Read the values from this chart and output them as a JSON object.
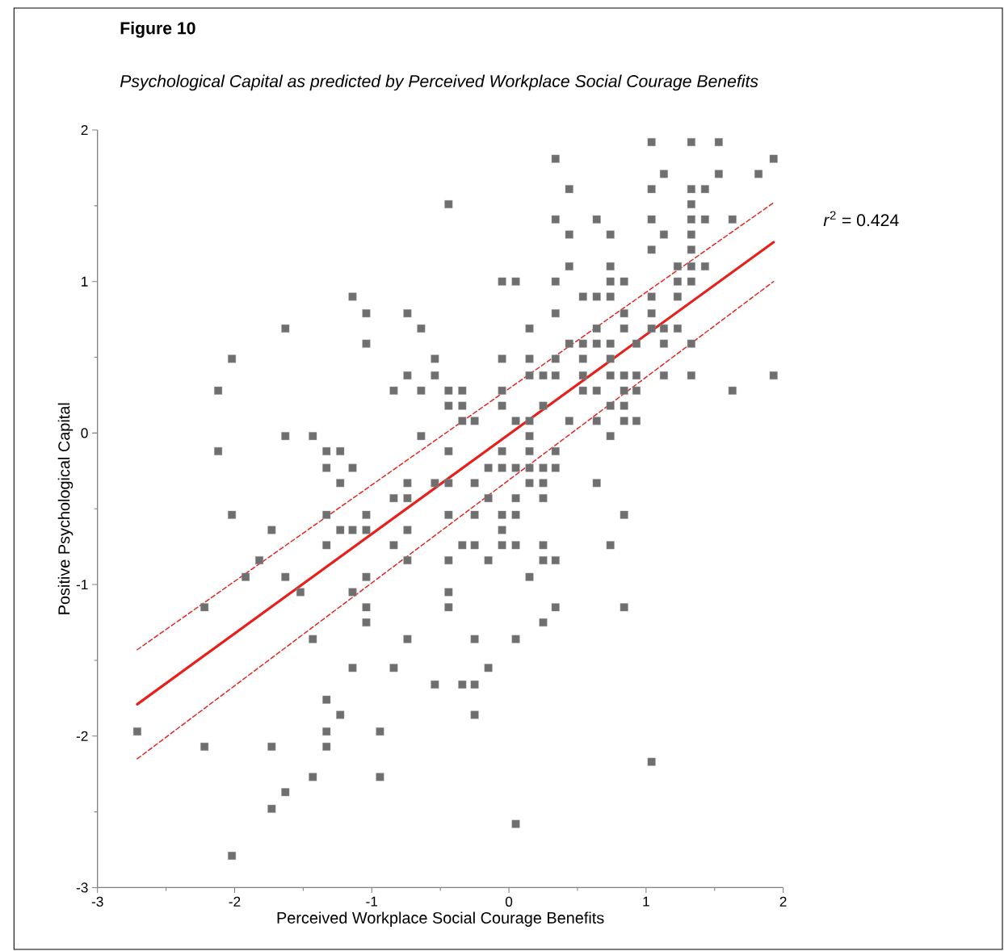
{
  "chart_data": {
    "type": "scatter",
    "title": "Figure 10",
    "subtitle": "Psychological Capital as predicted by Perceived Workplace Social Courage Benefits",
    "xlabel": "Perceived  Workplace Social Courage Benefits",
    "ylabel": "Positive Psychological Capital",
    "xlim": [
      -3,
      2
    ],
    "xticks": [
      -3,
      -2,
      -1,
      0,
      1,
      2
    ],
    "ylim": [
      -3,
      2
    ],
    "yticks": [
      -3,
      -2,
      -1,
      0,
      1,
      2
    ],
    "grid": false,
    "annotations": [
      "*r*$^{2}$ = 0.424"
    ],
    "series": [
      {
        "marker": "square",
        "color": "#6f6f6f",
        "x": [
          1.04,
          1.33,
          1.53,
          0.34,
          1.93,
          1.13,
          1.53,
          1.82,
          0.44,
          1.04,
          1.33,
          1.43,
          -0.44,
          1.33,
          0.34,
          0.64,
          1.04,
          1.33,
          1.43,
          1.63,
          0.44,
          0.74,
          1.13,
          1.33,
          1.04,
          1.33,
          0.44,
          0.74,
          1.23,
          1.33,
          1.43,
          -0.05,
          0.05,
          0.34,
          0.74,
          0.84,
          1.23,
          1.33,
          -1.14,
          0.54,
          0.64,
          0.74,
          1.04,
          1.23,
          -1.04,
          -0.74,
          0.34,
          0.84,
          1.04,
          -1.63,
          -0.64,
          0.15,
          0.64,
          0.84,
          1.04,
          1.13,
          1.23,
          -1.04,
          0.44,
          0.54,
          0.64,
          0.74,
          0.93,
          1.13,
          1.33,
          -2.02,
          -0.54,
          -0.05,
          0.15,
          0.34,
          0.54,
          0.74,
          -0.74,
          -0.54,
          0.15,
          0.25,
          0.34,
          0.54,
          0.74,
          0.84,
          0.93,
          1.13,
          1.33,
          1.93,
          -2.12,
          -0.84,
          -0.64,
          -0.44,
          -0.34,
          -0.05,
          0.54,
          0.64,
          0.84,
          0.93,
          1.63,
          -0.44,
          -0.34,
          -0.05,
          0.25,
          0.74,
          0.84,
          -0.34,
          -0.25,
          0.05,
          0.15,
          0.44,
          0.64,
          0.84,
          0.93,
          -1.63,
          -1.43,
          -0.64,
          0.15,
          0.74,
          -2.12,
          -1.33,
          -1.23,
          -0.44,
          -0.05,
          0.15,
          0.34,
          -1.33,
          -1.14,
          -0.15,
          -0.05,
          0.05,
          0.15,
          0.25,
          0.34,
          -1.23,
          -0.74,
          -0.54,
          -0.44,
          -0.25,
          0.15,
          0.25,
          0.64,
          -0.84,
          -0.74,
          -0.15,
          0.05,
          0.25,
          -2.02,
          -1.33,
          -1.04,
          -0.44,
          -0.25,
          -0.05,
          0.05,
          0.84,
          -1.73,
          -1.23,
          -1.14,
          -1.04,
          -0.74,
          -0.05,
          -1.33,
          -0.84,
          -0.34,
          -0.25,
          -0.05,
          0.05,
          0.25,
          0.74,
          -1.82,
          -0.74,
          -0.44,
          -0.15,
          0.25,
          0.34,
          -1.92,
          -1.63,
          -1.04,
          0.15,
          -1.52,
          -1.14,
          -0.44,
          -2.22,
          -1.04,
          -0.44,
          0.34,
          0.84,
          -1.04,
          0.25,
          -1.43,
          -0.74,
          -0.25,
          0.05,
          -1.14,
          -0.84,
          -0.15,
          -0.54,
          -0.34,
          -0.25,
          -1.33,
          -1.23,
          -0.25,
          -2.71,
          -1.33,
          -0.94,
          -2.22,
          -1.73,
          -1.33,
          1.04,
          -1.43,
          -0.94,
          -1.63,
          -1.73,
          0.05,
          -2.02
        ],
        "values": [
          1.92,
          1.92,
          1.92,
          1.81,
          1.81,
          1.71,
          1.71,
          1.71,
          1.61,
          1.61,
          1.61,
          1.61,
          1.51,
          1.51,
          1.41,
          1.41,
          1.41,
          1.41,
          1.41,
          1.41,
          1.31,
          1.31,
          1.31,
          1.31,
          1.21,
          1.21,
          1.1,
          1.1,
          1.1,
          1.1,
          1.1,
          1.0,
          1.0,
          1.0,
          1.0,
          1.0,
          1.0,
          1.0,
          0.9,
          0.9,
          0.9,
          0.9,
          0.9,
          0.9,
          0.79,
          0.79,
          0.79,
          0.79,
          0.79,
          0.69,
          0.69,
          0.69,
          0.69,
          0.69,
          0.69,
          0.69,
          0.69,
          0.59,
          0.59,
          0.59,
          0.59,
          0.59,
          0.59,
          0.59,
          0.59,
          0.49,
          0.49,
          0.49,
          0.49,
          0.49,
          0.49,
          0.49,
          0.38,
          0.38,
          0.38,
          0.38,
          0.38,
          0.38,
          0.38,
          0.38,
          0.38,
          0.38,
          0.38,
          0.38,
          0.28,
          0.28,
          0.28,
          0.28,
          0.28,
          0.28,
          0.28,
          0.28,
          0.28,
          0.28,
          0.28,
          0.18,
          0.18,
          0.18,
          0.18,
          0.18,
          0.18,
          0.08,
          0.08,
          0.08,
          0.08,
          0.08,
          0.08,
          0.08,
          0.08,
          -0.02,
          -0.02,
          -0.02,
          -0.02,
          -0.02,
          -0.12,
          -0.12,
          -0.12,
          -0.12,
          -0.12,
          -0.12,
          -0.12,
          -0.23,
          -0.23,
          -0.23,
          -0.23,
          -0.23,
          -0.23,
          -0.23,
          -0.23,
          -0.33,
          -0.33,
          -0.33,
          -0.33,
          -0.33,
          -0.33,
          -0.33,
          -0.33,
          -0.43,
          -0.43,
          -0.43,
          -0.43,
          -0.43,
          -0.54,
          -0.54,
          -0.54,
          -0.54,
          -0.54,
          -0.54,
          -0.54,
          -0.54,
          -0.64,
          -0.64,
          -0.64,
          -0.64,
          -0.64,
          -0.64,
          -0.74,
          -0.74,
          -0.74,
          -0.74,
          -0.74,
          -0.74,
          -0.74,
          -0.74,
          -0.84,
          -0.84,
          -0.84,
          -0.84,
          -0.84,
          -0.84,
          -0.95,
          -0.95,
          -0.95,
          -0.95,
          -1.05,
          -1.05,
          -1.05,
          -1.15,
          -1.15,
          -1.15,
          -1.15,
          -1.15,
          -1.25,
          -1.25,
          -1.36,
          -1.36,
          -1.36,
          -1.36,
          -1.55,
          -1.55,
          -1.55,
          -1.66,
          -1.66,
          -1.66,
          -1.76,
          -1.86,
          -1.86,
          -1.97,
          -1.97,
          -1.97,
          -2.07,
          -2.07,
          -2.07,
          -2.17,
          -2.27,
          -2.27,
          -2.37,
          -2.48,
          -2.58,
          -2.79
        ]
      },
      {
        "type": "line",
        "marker": "none",
        "line_style": "solid",
        "color": "#e8201c",
        "x": [
          -2.71,
          1.93
        ],
        "values": [
          -1.79,
          1.26
        ]
      },
      {
        "type": "line",
        "marker": "none",
        "line_style": "dashed",
        "color": "#e8201c",
        "x": [
          -2.71,
          1.93
        ],
        "values": [
          -1.43,
          1.52
        ]
      },
      {
        "type": "line",
        "marker": "none",
        "line_style": "dashed",
        "color": "#e8201c",
        "x": [
          -2.71,
          1.93
        ],
        "values": [
          -2.15,
          1.0
        ]
      }
    ]
  }
}
